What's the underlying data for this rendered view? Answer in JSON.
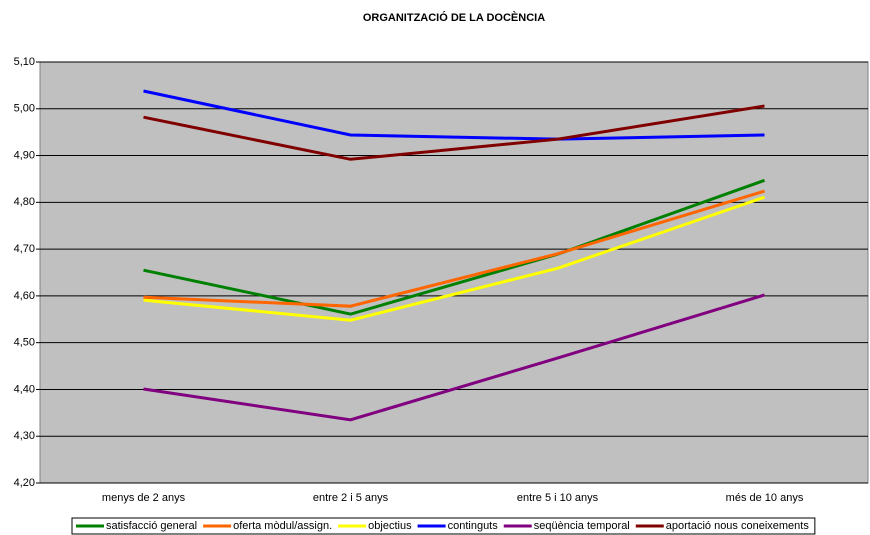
{
  "chart_data": {
    "type": "line",
    "title": "ORGANITZACIÓ DE LA DOCÈNCIA",
    "categories": [
      "menys de 2 anys",
      "entre 2 i 5 anys",
      "entre 5 i 10 anys",
      "més de 10 anys"
    ],
    "series": [
      {
        "name": "satisfacció general",
        "color": "#008000",
        "values": [
          4.655,
          4.561,
          4.689,
          4.847
        ]
      },
      {
        "name": "oferta mòdul/assign.",
        "color": "#ff6600",
        "values": [
          4.597,
          4.578,
          4.69,
          4.824
        ]
      },
      {
        "name": "objectius",
        "color": "#ffff00",
        "values": [
          4.591,
          4.548,
          4.659,
          4.811
        ]
      },
      {
        "name": "continguts",
        "color": "#0000ff",
        "values": [
          5.038,
          4.944,
          4.935,
          4.944
        ]
      },
      {
        "name": "seqüència temporal",
        "color": "#800080",
        "values": [
          4.401,
          4.335,
          4.467,
          4.602
        ]
      },
      {
        "name": "aportació nous coneixements",
        "color": "#800000",
        "values": [
          4.982,
          4.892,
          4.935,
          5.006
        ]
      }
    ],
    "ylim": [
      4.2,
      5.1
    ],
    "yticks": [
      {
        "value": 4.2,
        "label": "4,20"
      },
      {
        "value": 4.3,
        "label": "4,30"
      },
      {
        "value": 4.4,
        "label": "4,40"
      },
      {
        "value": 4.5,
        "label": "4,50"
      },
      {
        "value": 4.6,
        "label": "4,60"
      },
      {
        "value": 4.7,
        "label": "4,70"
      },
      {
        "value": 4.8,
        "label": "4,80"
      },
      {
        "value": 4.9,
        "label": "4,90"
      },
      {
        "value": 5.0,
        "label": "5,00"
      },
      {
        "value": 5.1,
        "label": "5,10"
      }
    ],
    "grid": true,
    "legend": "bottom"
  }
}
